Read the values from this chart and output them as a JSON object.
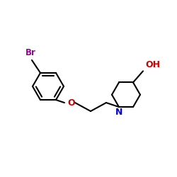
{
  "background_color": "#ffffff",
  "bond_color": "#000000",
  "br_color": "#9b009b",
  "o_color": "#cc0000",
  "n_color": "#0000cc",
  "oh_color": "#cc0000",
  "line_width": 1.5,
  "figsize": [
    2.5,
    2.5
  ],
  "dpi": 100,
  "br_label": "Br",
  "o_label": "O",
  "n_label": "N",
  "oh_label": "OH"
}
